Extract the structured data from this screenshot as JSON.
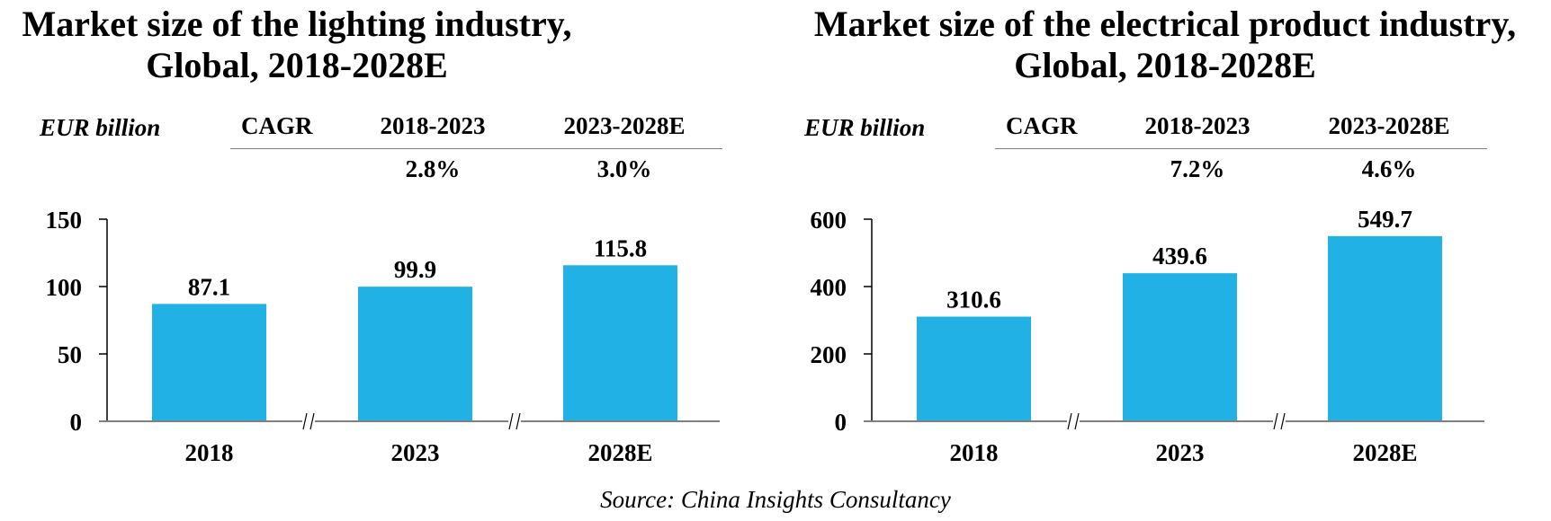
{
  "chart_data": [
    {
      "type": "bar",
      "title_lines": [
        "Market size of the lighting industry,",
        "Global, 2018-2028E"
      ],
      "unit_label": "EUR billion",
      "cagr": {
        "label": "CAGR",
        "periods": [
          "2018-2023",
          "2023-2028E"
        ],
        "values": [
          "2.8%",
          "3.0%"
        ]
      },
      "categories": [
        "2018",
        "2023",
        "2028E"
      ],
      "values": [
        87.1,
        99.9,
        115.8
      ],
      "value_labels": [
        "87.1",
        "99.9",
        "115.8"
      ],
      "yticks": [
        0,
        50,
        100,
        150
      ],
      "ylim": [
        0,
        150
      ],
      "axis_breaks_between_categories": true,
      "bar_color": "#21B1E5",
      "grid": false,
      "xlabel": "",
      "ylabel": "EUR billion"
    },
    {
      "type": "bar",
      "title_lines": [
        "Market size of the electrical product industry,",
        "Global, 2018-2028E"
      ],
      "unit_label": "EUR billion",
      "cagr": {
        "label": "CAGR",
        "periods": [
          "2018-2023",
          "2023-2028E"
        ],
        "values": [
          "7.2%",
          "4.6%"
        ]
      },
      "categories": [
        "2018",
        "2023",
        "2028E"
      ],
      "values": [
        310.6,
        439.6,
        549.7
      ],
      "value_labels": [
        "310.6",
        "439.6",
        "549.7"
      ],
      "yticks": [
        0,
        200,
        400,
        600
      ],
      "ylim": [
        0,
        600
      ],
      "axis_breaks_between_categories": true,
      "bar_color": "#21B1E5",
      "grid": false,
      "xlabel": "",
      "ylabel": "EUR billion"
    }
  ],
  "source": "Source: China Insights Consultancy"
}
